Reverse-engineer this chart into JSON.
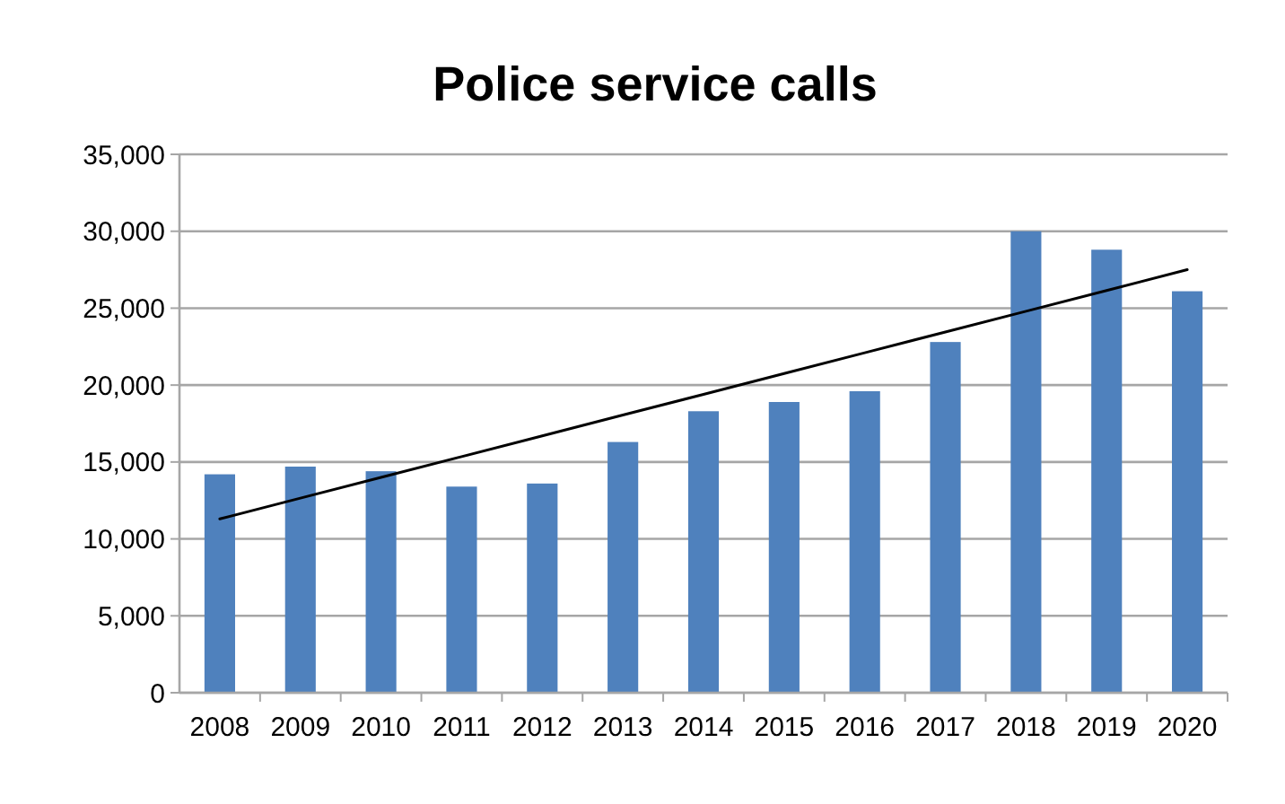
{
  "chart_data": {
    "type": "bar",
    "title": "Police service calls",
    "categories": [
      "2008",
      "2009",
      "2010",
      "2011",
      "2012",
      "2013",
      "2014",
      "2015",
      "2016",
      "2017",
      "2018",
      "2019",
      "2020"
    ],
    "series": [
      {
        "color": "#4f81bd",
        "values": [
          14200,
          14700,
          14400,
          13400,
          13600,
          16300,
          18300,
          18900,
          19600,
          22800,
          30000,
          28800,
          26100
        ]
      },
      {
        "type": "line",
        "color": "#000000",
        "values": [
          11300,
          12650,
          14000,
          15350,
          16700,
          18050,
          19400,
          20750,
          22100,
          23450,
          24800,
          26150,
          27500
        ]
      }
    ],
    "ylim": [
      0,
      35000
    ],
    "yticks": [
      {
        "value": 0,
        "label": "0"
      },
      {
        "value": 5000,
        "label": "5,000"
      },
      {
        "value": 10000,
        "label": "10,000"
      },
      {
        "value": 15000,
        "label": "15,000"
      },
      {
        "value": 20000,
        "label": "20,000"
      },
      {
        "value": 25000,
        "label": "25,000"
      },
      {
        "value": 30000,
        "label": "30,000"
      },
      {
        "value": 35000,
        "label": "35,000"
      }
    ],
    "grid": "y"
  }
}
